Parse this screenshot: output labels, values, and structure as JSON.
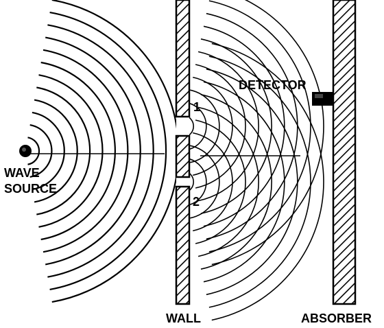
{
  "labels": {
    "wave": "WAVE",
    "source": "SOURCE",
    "wall": "WALL",
    "detector": "DETECTOR",
    "absorber": "ABSORBER",
    "slit1": "1",
    "slit2": "2"
  },
  "colors": {
    "ink": "#000000",
    "paper": "#ffffff"
  }
}
